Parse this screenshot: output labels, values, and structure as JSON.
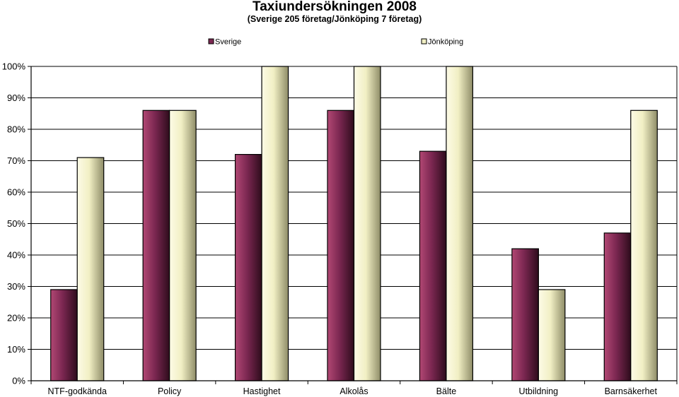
{
  "chart_data": {
    "type": "bar",
    "title": "Taxiundersökningen 2008",
    "subtitle": "(Sverige 205 företag/Jönköping 7 företag)",
    "categories": [
      "NTF-godkända",
      "Policy",
      "Hastighet",
      "Alkolås",
      "Bälte",
      "Utbildning",
      "Barnsäkerhet"
    ],
    "series": [
      {
        "name": "Sverige",
        "values": [
          29,
          86,
          72,
          86,
          73,
          42,
          47
        ],
        "color": "#7b2751"
      },
      {
        "name": "Jönköping",
        "values": [
          71,
          86,
          100,
          100,
          100,
          29,
          86
        ],
        "color": "#f1efc4"
      }
    ],
    "y_ticks": [
      "0%",
      "10%",
      "20%",
      "30%",
      "40%",
      "50%",
      "60%",
      "70%",
      "80%",
      "90%",
      "100%"
    ],
    "ylim": [
      0,
      100
    ],
    "grid": true,
    "legend_position": "top"
  }
}
